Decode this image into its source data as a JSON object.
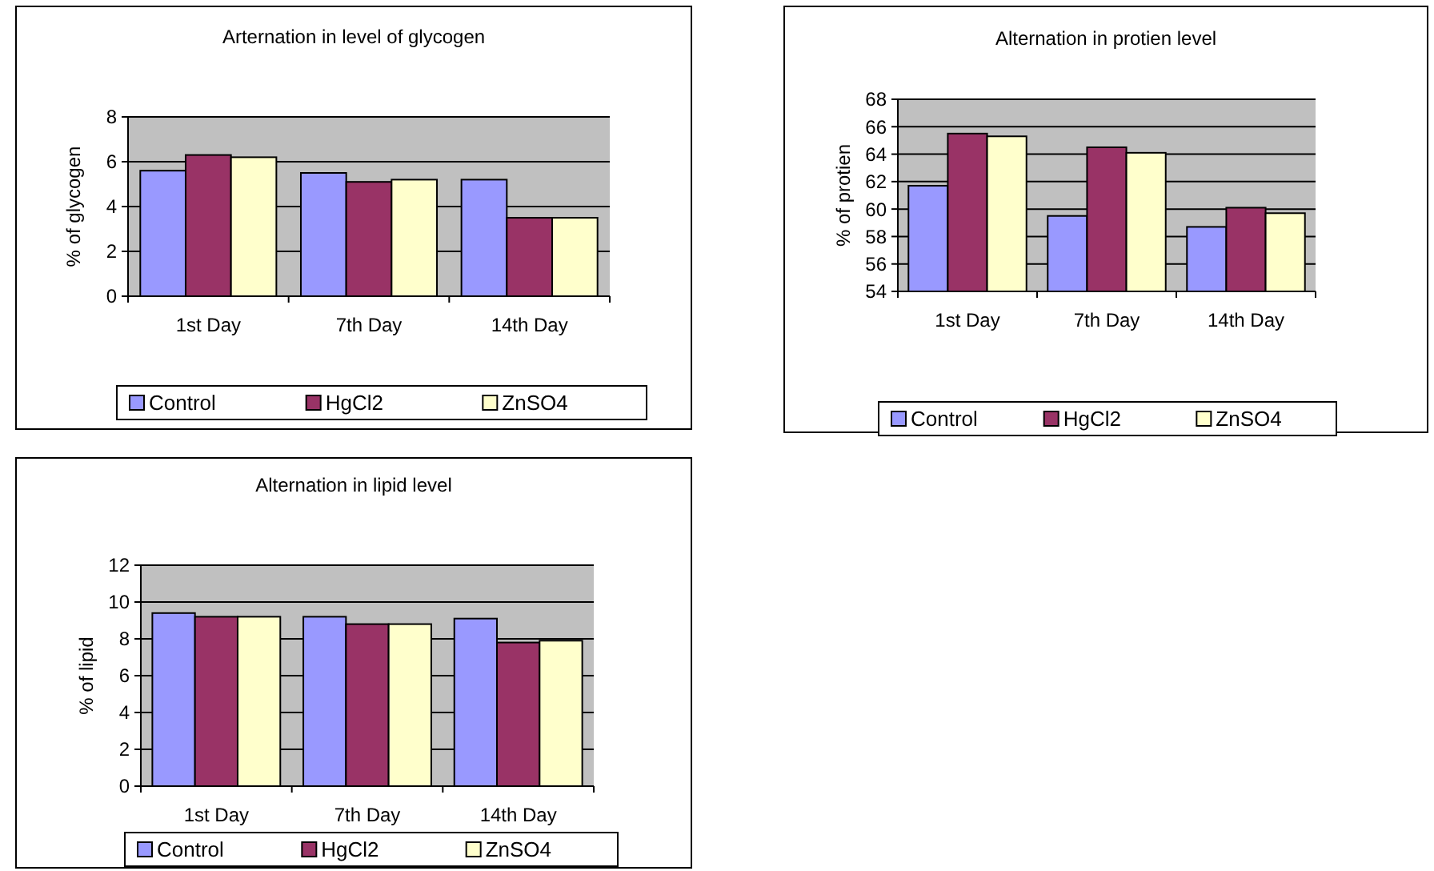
{
  "chart_data": [
    {
      "type": "bar",
      "title": "Arternation in level of glycogen",
      "ylabel": "% of glycogen",
      "categories": [
        "1st Day",
        "7th Day",
        "14th Day"
      ],
      "series": [
        {
          "name": "Control",
          "color": "#9999ff",
          "values": [
            5.6,
            5.5,
            5.2
          ]
        },
        {
          "name": "HgCl2",
          "color": "#993366",
          "values": [
            6.3,
            5.1,
            3.5
          ]
        },
        {
          "name": "ZnSO4",
          "color": "#ffffcc",
          "values": [
            6.2,
            5.2,
            3.5
          ]
        }
      ],
      "ylim": [
        0,
        8
      ],
      "yticks": [
        0,
        2,
        4,
        6,
        8
      ],
      "grid": "y",
      "legend": "bottom"
    },
    {
      "type": "bar",
      "title": "Alternation in protien level",
      "ylabel": "% of protien",
      "categories": [
        "1st Day",
        "7th Day",
        "14th Day"
      ],
      "series": [
        {
          "name": "Control",
          "color": "#9999ff",
          "values": [
            61.7,
            59.5,
            58.7
          ]
        },
        {
          "name": "HgCl2",
          "color": "#993366",
          "values": [
            65.5,
            64.5,
            60.1
          ]
        },
        {
          "name": "ZnSO4",
          "color": "#ffffcc",
          "values": [
            65.3,
            64.1,
            59.7
          ]
        }
      ],
      "ylim": [
        54,
        68
      ],
      "yticks": [
        54,
        56,
        58,
        60,
        62,
        64,
        66,
        68
      ],
      "grid": "y",
      "legend": "bottom"
    },
    {
      "type": "bar",
      "title": "Alternation in lipid level",
      "ylabel": "% of lipid",
      "categories": [
        "1st Day",
        "7th Day",
        "14th Day"
      ],
      "series": [
        {
          "name": "Control",
          "color": "#9999ff",
          "values": [
            9.4,
            9.2,
            9.1
          ]
        },
        {
          "name": "HgCl2",
          "color": "#993366",
          "values": [
            9.2,
            8.8,
            7.8
          ]
        },
        {
          "name": "ZnSO4",
          "color": "#ffffcc",
          "values": [
            9.2,
            8.8,
            7.9
          ]
        }
      ],
      "ylim": [
        0,
        12
      ],
      "yticks": [
        0,
        2,
        4,
        6,
        8,
        10,
        12
      ],
      "grid": "y",
      "legend": "bottom"
    }
  ]
}
